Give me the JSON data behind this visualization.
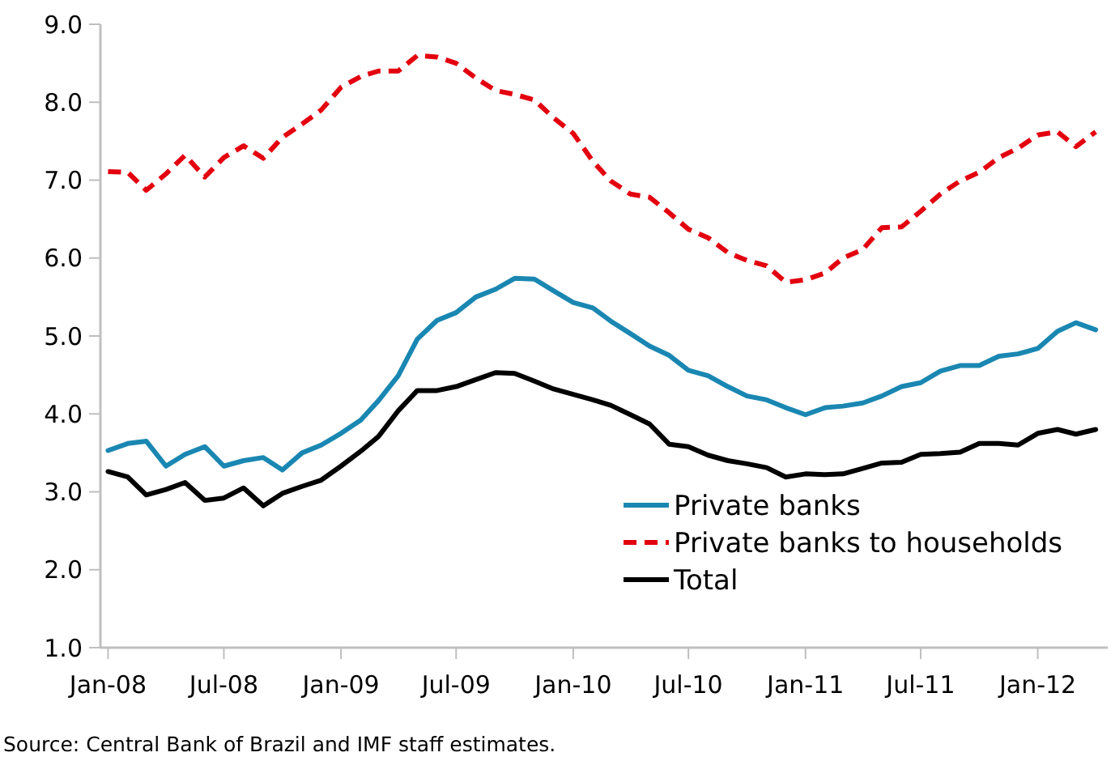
{
  "chart_data": {
    "type": "line",
    "x": [
      "2008-01",
      "2008-02",
      "2008-03",
      "2008-04",
      "2008-05",
      "2008-06",
      "2008-07",
      "2008-08",
      "2008-09",
      "2008-10",
      "2008-11",
      "2008-12",
      "2009-01",
      "2009-02",
      "2009-03",
      "2009-04",
      "2009-05",
      "2009-06",
      "2009-07",
      "2009-08",
      "2009-09",
      "2009-10",
      "2009-11",
      "2009-12",
      "2010-01",
      "2010-02",
      "2010-03",
      "2010-04",
      "2010-05",
      "2010-06",
      "2010-07",
      "2010-08",
      "2010-09",
      "2010-10",
      "2010-11",
      "2010-12",
      "2011-01",
      "2011-02",
      "2011-03",
      "2011-04",
      "2011-05",
      "2011-06",
      "2011-07",
      "2011-08",
      "2011-09",
      "2011-10",
      "2011-11",
      "2011-12",
      "2012-01",
      "2012-02",
      "2012-03",
      "2012-04"
    ],
    "series": [
      {
        "name": "Private banks",
        "color": "#1a87b2",
        "line_style": "solid",
        "values": [
          3.53,
          3.62,
          3.65,
          3.33,
          3.48,
          3.58,
          3.33,
          3.4,
          3.44,
          3.28,
          3.5,
          3.6,
          3.75,
          3.92,
          4.17,
          4.49,
          4.96,
          5.2,
          5.3,
          5.5,
          5.6,
          5.74,
          5.73,
          5.58,
          5.43,
          5.36,
          5.19,
          5.03,
          4.87,
          4.75,
          4.56,
          4.49,
          4.35,
          4.23,
          4.18,
          4.08,
          3.99,
          4.08,
          4.1,
          4.14,
          4.23,
          4.35,
          4.4,
          4.55,
          4.62,
          4.62,
          4.74,
          4.77,
          4.84,
          5.06,
          5.17,
          5.08
        ]
      },
      {
        "name": "Private banks to households",
        "color": "#e3000f",
        "line_style": "dashed",
        "values": [
          7.11,
          7.1,
          6.87,
          7.08,
          7.32,
          7.04,
          7.29,
          7.44,
          7.28,
          7.55,
          7.72,
          7.9,
          8.19,
          8.33,
          8.4,
          8.4,
          8.6,
          8.58,
          8.5,
          8.31,
          8.15,
          8.1,
          8.03,
          7.8,
          7.6,
          7.24,
          6.99,
          6.82,
          6.78,
          6.58,
          6.37,
          6.26,
          6.07,
          5.97,
          5.9,
          5.69,
          5.72,
          5.81,
          6.0,
          6.11,
          6.39,
          6.4,
          6.6,
          6.82,
          6.99,
          7.1,
          7.29,
          7.41,
          7.58,
          7.62,
          7.43,
          7.62
        ]
      },
      {
        "name": "Total",
        "color": "#000000",
        "line_style": "solid",
        "values": [
          3.26,
          3.19,
          2.96,
          3.03,
          3.12,
          2.89,
          2.92,
          3.05,
          2.82,
          2.98,
          3.07,
          3.15,
          3.33,
          3.52,
          3.71,
          4.04,
          4.3,
          4.3,
          4.35,
          4.44,
          4.53,
          4.52,
          4.42,
          4.32,
          4.25,
          4.18,
          4.11,
          3.99,
          3.87,
          3.61,
          3.58,
          3.47,
          3.4,
          3.36,
          3.31,
          3.19,
          3.23,
          3.22,
          3.23,
          3.3,
          3.37,
          3.38,
          3.48,
          3.49,
          3.51,
          3.62,
          3.62,
          3.6,
          3.75,
          3.8,
          3.74,
          3.8
        ]
      }
    ],
    "xlim": [
      "2007-12-20",
      "2012-04-20"
    ],
    "xticks": [
      {
        "value": "2008-01",
        "label": "Jan-08"
      },
      {
        "value": "2008-07",
        "label": "Jul-08"
      },
      {
        "value": "2009-01",
        "label": "Jan-09"
      },
      {
        "value": "2009-07",
        "label": "Jul-09"
      },
      {
        "value": "2010-01",
        "label": "Jan-10"
      },
      {
        "value": "2010-07",
        "label": "Jul-10"
      },
      {
        "value": "2011-01",
        "label": "Jan-11"
      },
      {
        "value": "2011-07",
        "label": "Jul-11"
      },
      {
        "value": "2012-01",
        "label": "Jan-12"
      }
    ],
    "ylim": [
      1,
      9
    ],
    "yticks": [
      {
        "value": 1,
        "label": "1.0"
      },
      {
        "value": 2,
        "label": "2.0"
      },
      {
        "value": 3,
        "label": "3.0"
      },
      {
        "value": 4,
        "label": "4.0"
      },
      {
        "value": 5,
        "label": "5.0"
      },
      {
        "value": 6,
        "label": "6.0"
      },
      {
        "value": 7,
        "label": "7.0"
      },
      {
        "value": 8,
        "label": "8.0"
      },
      {
        "value": 9,
        "label": "9.0"
      }
    ],
    "grid": false,
    "legend": "bottom right",
    "marker": "none",
    "annotations": [
      "Source: Central Bank of Brazil and IMF staff estimates."
    ]
  }
}
